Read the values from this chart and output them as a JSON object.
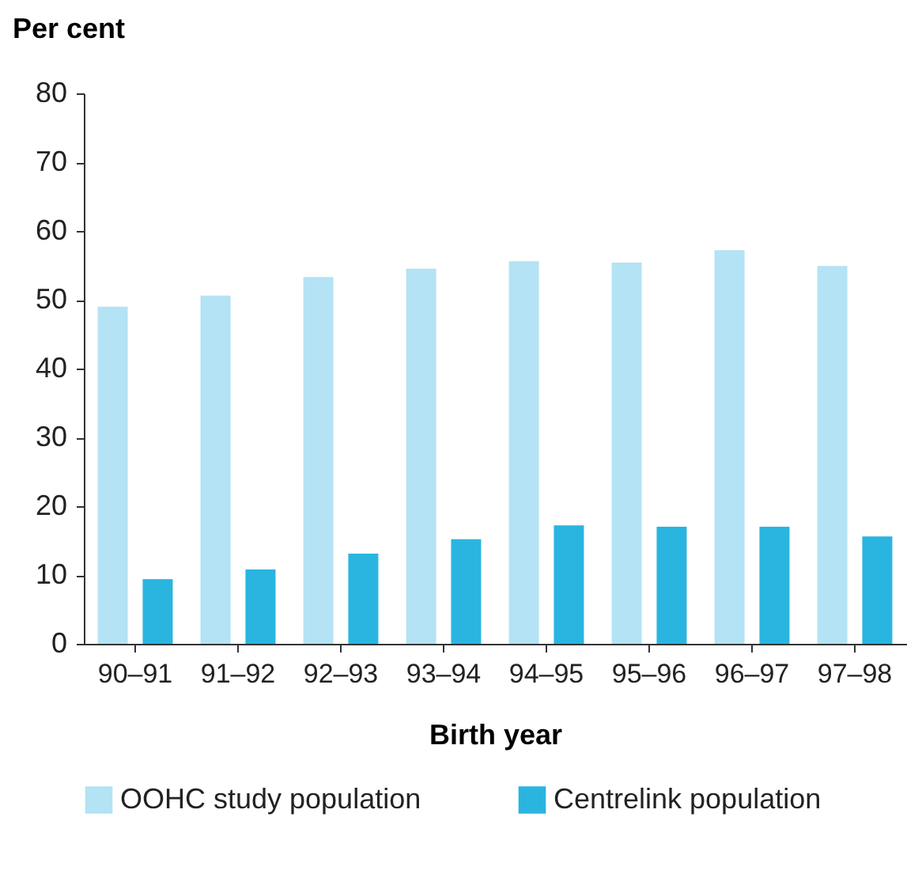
{
  "chart_data": {
    "type": "bar",
    "ylabel": "Per cent",
    "xlabel": "Birth year",
    "categories": [
      "90–91",
      "91–92",
      "92–93",
      "93–94",
      "94–95",
      "95–96",
      "96–97",
      "97–98"
    ],
    "series": [
      {
        "name": "OOHC study population",
        "color": "#b3e3f4",
        "values": [
          49.0,
          50.6,
          53.3,
          54.5,
          55.6,
          55.4,
          57.2,
          54.9
        ]
      },
      {
        "name": "Centrelink population",
        "color": "#29b5e0",
        "values": [
          9.4,
          10.8,
          13.1,
          15.2,
          17.2,
          17.0,
          17.0,
          15.6
        ]
      }
    ],
    "ylim": [
      0,
      80
    ],
    "yticks": [
      0,
      10,
      20,
      30,
      40,
      50,
      60,
      70,
      80
    ],
    "grid": false,
    "legend": "bottom"
  }
}
